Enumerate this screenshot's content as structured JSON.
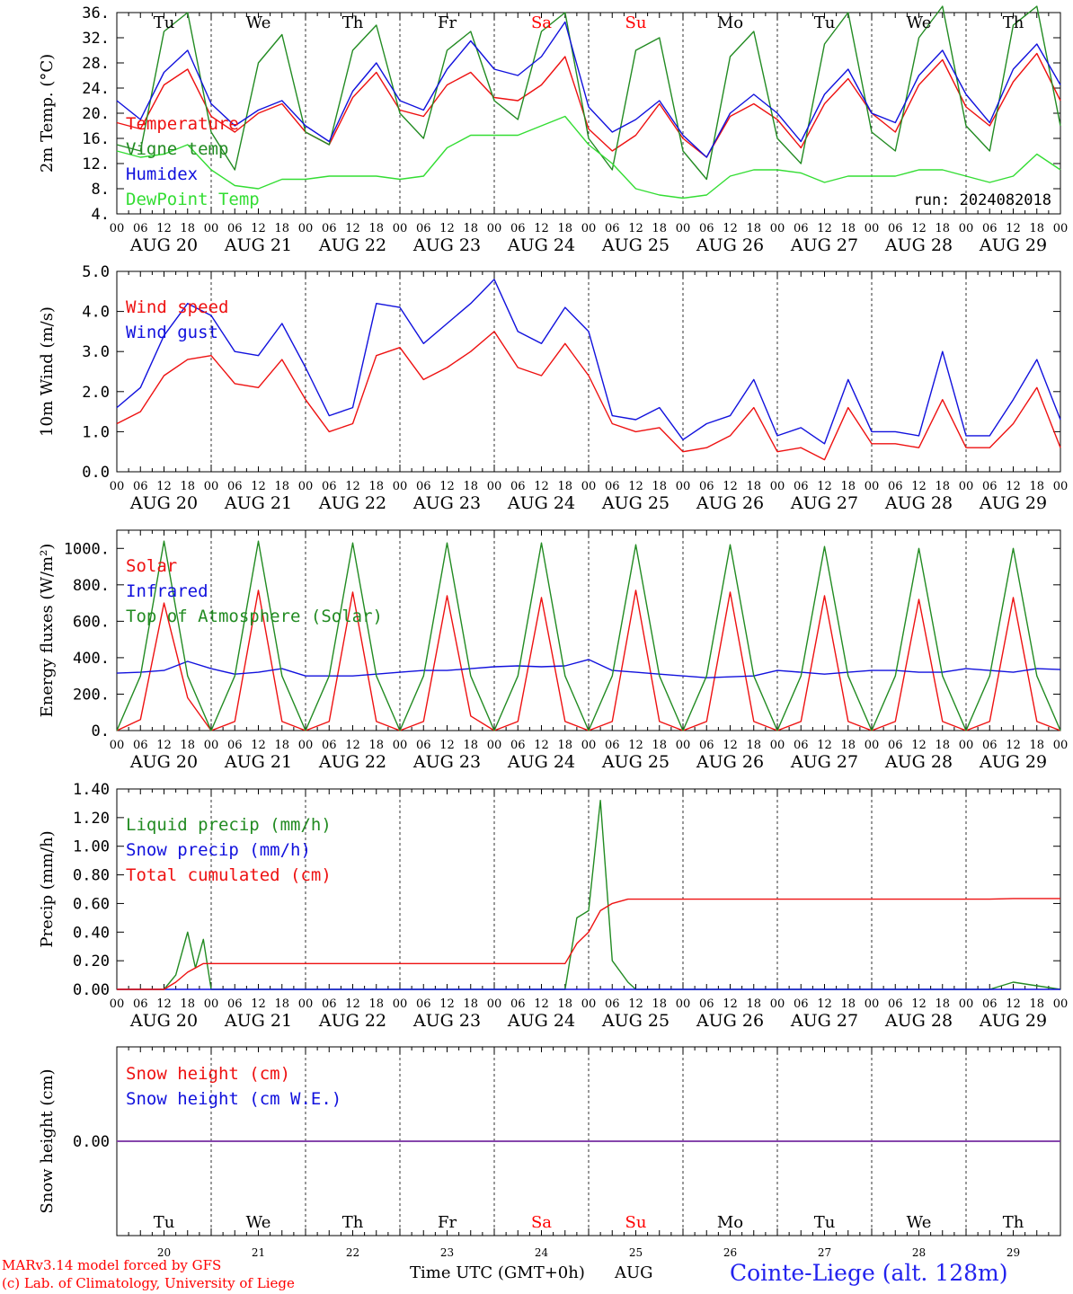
{
  "days": [
    "20",
    "21",
    "22",
    "23",
    "24",
    "25",
    "26",
    "27",
    "28",
    "29"
  ],
  "day_names": [
    "Tu",
    "We",
    "Th",
    "Fr",
    "Sa",
    "Su",
    "Mo",
    "Tu",
    "We",
    "Th"
  ],
  "weekend_day_indices": [
    4,
    5
  ],
  "date_labels": [
    "AUG 20",
    "AUG 21",
    "AUG 22",
    "AUG 23",
    "AUG 24",
    "AUG 25",
    "AUG 26",
    "AUG 27",
    "AUG 28",
    "AUG 29"
  ],
  "hour_ticks": [
    "00",
    "06",
    "12",
    "18"
  ],
  "colors": {
    "red": "#ee1111",
    "green": "#228b22",
    "blue": "#1111dd",
    "lime": "#33dd33",
    "purple": "#8844aa",
    "weekend": "#ff0000"
  },
  "footer": {
    "credit_line1": "MARv3.14 model forced by GFS",
    "credit_line2": "(c) Lab. of Climatology, University of Liege",
    "time_label": "Time UTC (GMT+0h)",
    "month": "AUG",
    "station": "Cointe-Liege (alt. 128m)"
  },
  "chart_data": [
    {
      "type": "line",
      "ylabel": "2m Temp. (°C)",
      "ylim": [
        4,
        36
      ],
      "yticks": [
        "36.",
        "32.",
        "28.",
        "24.",
        "20.",
        "16.",
        "12.",
        "8.",
        "4."
      ],
      "annotation": "run: 2024082018",
      "x_hours": [
        0,
        6,
        12,
        18,
        24,
        30,
        36,
        42,
        48,
        54,
        60,
        66,
        72,
        78,
        84,
        90,
        96,
        102,
        108,
        114,
        120,
        126,
        132,
        138,
        144,
        150,
        156,
        162,
        168,
        174,
        180,
        186,
        192,
        198,
        204,
        210,
        216,
        222,
        228,
        234,
        240
      ],
      "series": [
        {
          "name": "Temperature",
          "color": "#ee1111",
          "values": [
            18.5,
            17.5,
            24.5,
            27,
            19.5,
            17,
            20,
            21.5,
            17,
            15,
            22.5,
            26.5,
            20.5,
            19.5,
            24.5,
            26.5,
            22.5,
            22,
            24.5,
            29,
            17.5,
            14,
            16.5,
            21.5,
            16,
            13,
            19.5,
            21.5,
            19,
            14.5,
            21.5,
            25.5,
            20,
            17,
            24.5,
            28.5,
            21,
            18,
            25,
            29.5,
            22
          ]
        },
        {
          "name": "Vigne temp",
          "color": "#228b22",
          "values": [
            15,
            14,
            33,
            36,
            17,
            11,
            28,
            32.5,
            17,
            15,
            30,
            34,
            20,
            16,
            30,
            33,
            22,
            19,
            33,
            36,
            16,
            11,
            30,
            32,
            14,
            9.5,
            29,
            33,
            16,
            12,
            31,
            36,
            17,
            14,
            32,
            37,
            18,
            14,
            34,
            37,
            18
          ]
        },
        {
          "name": "Humidex",
          "color": "#1111dd",
          "values": [
            22,
            19,
            26.5,
            30,
            21.5,
            18,
            20.5,
            22,
            18,
            15.5,
            23.5,
            28,
            22,
            20.5,
            27,
            31.5,
            27,
            26,
            29,
            34.5,
            21,
            17,
            19,
            22,
            16.5,
            13,
            20,
            23,
            20,
            15.5,
            23,
            27,
            20,
            18.5,
            26,
            30,
            23,
            18.5,
            27,
            31,
            24.5
          ]
        },
        {
          "name": "DewPoint Temp",
          "color": "#33dd33",
          "values": [
            14,
            13,
            13.5,
            15,
            11,
            8.5,
            8,
            9.5,
            9.5,
            10,
            10,
            10,
            9.5,
            10,
            14.5,
            16.5,
            16.5,
            16.5,
            18,
            19.5,
            15,
            12,
            8,
            7,
            6.5,
            7,
            10,
            11,
            11,
            10.5,
            9,
            10,
            10,
            10,
            11,
            11,
            10,
            9,
            10,
            13.5,
            11
          ]
        }
      ]
    },
    {
      "type": "line",
      "ylabel": "10m Wind (m/s)",
      "ylim": [
        0,
        5
      ],
      "yticks": [
        "5.0",
        "4.0",
        "3.0",
        "2.0",
        "1.0",
        "0.0"
      ],
      "x_hours": [
        0,
        6,
        12,
        18,
        24,
        30,
        36,
        42,
        48,
        54,
        60,
        66,
        72,
        78,
        84,
        90,
        96,
        102,
        108,
        114,
        120,
        126,
        132,
        138,
        144,
        150,
        156,
        162,
        168,
        174,
        180,
        186,
        192,
        198,
        204,
        210,
        216,
        222,
        228,
        234,
        240
      ],
      "series": [
        {
          "name": "Wind speed",
          "color": "#ee1111",
          "values": [
            1.2,
            1.5,
            2.4,
            2.8,
            2.9,
            2.2,
            2.1,
            2.8,
            1.8,
            1.0,
            1.2,
            2.9,
            3.1,
            2.3,
            2.6,
            3.0,
            3.5,
            2.6,
            2.4,
            3.2,
            2.4,
            1.2,
            1.0,
            1.1,
            0.5,
            0.6,
            0.9,
            1.6,
            0.5,
            0.6,
            0.3,
            1.6,
            0.7,
            0.7,
            0.6,
            1.8,
            0.6,
            0.6,
            1.2,
            2.1,
            0.6
          ]
        },
        {
          "name": "Wind gust",
          "color": "#1111dd",
          "values": [
            1.6,
            2.1,
            3.4,
            4.2,
            3.9,
            3.0,
            2.9,
            3.7,
            2.6,
            1.4,
            1.6,
            4.2,
            4.1,
            3.2,
            3.7,
            4.2,
            4.8,
            3.5,
            3.2,
            4.1,
            3.5,
            1.4,
            1.3,
            1.6,
            0.8,
            1.2,
            1.4,
            2.3,
            0.9,
            1.1,
            0.7,
            2.3,
            1.0,
            1.0,
            0.9,
            3.0,
            0.9,
            0.9,
            1.8,
            2.8,
            1.3
          ]
        }
      ]
    },
    {
      "type": "line",
      "ylabel": "Energy fluxes (W/m²)",
      "ylim": [
        0,
        1100
      ],
      "yticks": [
        "1000.",
        "800.",
        "600.",
        "400.",
        "200.",
        "0."
      ],
      "x_hours": [
        0,
        6,
        12,
        18,
        24,
        30,
        36,
        42,
        48,
        54,
        60,
        66,
        72,
        78,
        84,
        90,
        96,
        102,
        108,
        114,
        120,
        126,
        132,
        138,
        144,
        150,
        156,
        162,
        168,
        174,
        180,
        186,
        192,
        198,
        204,
        210,
        216,
        222,
        228,
        234,
        240
      ],
      "series": [
        {
          "name": "Solar",
          "color": "#ee1111",
          "values": [
            0,
            60,
            700,
            180,
            0,
            50,
            770,
            50,
            0,
            50,
            760,
            50,
            0,
            50,
            740,
            80,
            0,
            50,
            730,
            50,
            0,
            50,
            770,
            50,
            0,
            50,
            760,
            50,
            0,
            50,
            740,
            50,
            0,
            50,
            720,
            50,
            0,
            50,
            730,
            50,
            0
          ]
        },
        {
          "name": "Infrared",
          "color": "#1111dd",
          "values": [
            315,
            320,
            330,
            380,
            340,
            310,
            320,
            340,
            300,
            300,
            300,
            310,
            320,
            330,
            330,
            340,
            350,
            355,
            350,
            355,
            390,
            330,
            320,
            310,
            300,
            290,
            295,
            300,
            330,
            320,
            310,
            320,
            330,
            330,
            320,
            320,
            340,
            330,
            320,
            340,
            335
          ]
        },
        {
          "name": "Top of Atmosphere (Solar)",
          "color": "#228b22",
          "values": [
            0,
            300,
            1040,
            300,
            0,
            300,
            1040,
            300,
            0,
            300,
            1030,
            300,
            0,
            300,
            1030,
            300,
            0,
            300,
            1030,
            300,
            0,
            300,
            1020,
            300,
            0,
            300,
            1020,
            300,
            0,
            300,
            1010,
            300,
            0,
            300,
            1000,
            300,
            0,
            300,
            1000,
            300,
            0
          ]
        }
      ]
    },
    {
      "type": "line",
      "ylabel": "Precip (mm/h)",
      "ylim": [
        0,
        1.4
      ],
      "yticks": [
        "1.40",
        "1.20",
        "1.00",
        "0.80",
        "0.60",
        "0.40",
        "0.20",
        "0.00"
      ],
      "x_hours": [
        0,
        6,
        12,
        15,
        18,
        20,
        22,
        24,
        48,
        72,
        96,
        108,
        114,
        117,
        120,
        123,
        126,
        130,
        132,
        144,
        168,
        192,
        204,
        222,
        228,
        240
      ],
      "series": [
        {
          "name": "Liquid precip (mm/h)",
          "color": "#228b22",
          "values": [
            0,
            0,
            0,
            0.1,
            0.4,
            0.15,
            0.35,
            0,
            0,
            0,
            0,
            0,
            0,
            0.5,
            0.55,
            1.32,
            0.2,
            0.05,
            0,
            0,
            0,
            0,
            0,
            0,
            0.05,
            0
          ]
        },
        {
          "name": "Snow precip (mm/h)",
          "color": "#1111dd",
          "values": [
            0,
            0,
            0,
            0,
            0,
            0,
            0,
            0,
            0,
            0,
            0,
            0,
            0,
            0,
            0,
            0,
            0,
            0,
            0,
            0,
            0,
            0,
            0,
            0,
            0,
            0
          ]
        },
        {
          "name": "Total cumulated (cm)",
          "color": "#ee1111",
          "values": [
            0,
            0,
            0,
            0.05,
            0.12,
            0.15,
            0.18,
            0.18,
            0.18,
            0.18,
            0.18,
            0.18,
            0.18,
            0.32,
            0.4,
            0.55,
            0.6,
            0.63,
            0.63,
            0.63,
            0.63,
            0.63,
            0.63,
            0.63,
            0.635,
            0.635
          ]
        }
      ]
    },
    {
      "type": "line",
      "ylabel": "Snow height (cm)",
      "yticks": [
        "0.00"
      ],
      "x_hours": [
        0,
        240
      ],
      "series": [
        {
          "name": "Snow height (cm)",
          "color": "#ee1111",
          "values": [
            0,
            0
          ]
        },
        {
          "name": "Snow height (cm W.E.)",
          "color": "#1111dd",
          "values": [
            0,
            0
          ]
        }
      ]
    }
  ]
}
